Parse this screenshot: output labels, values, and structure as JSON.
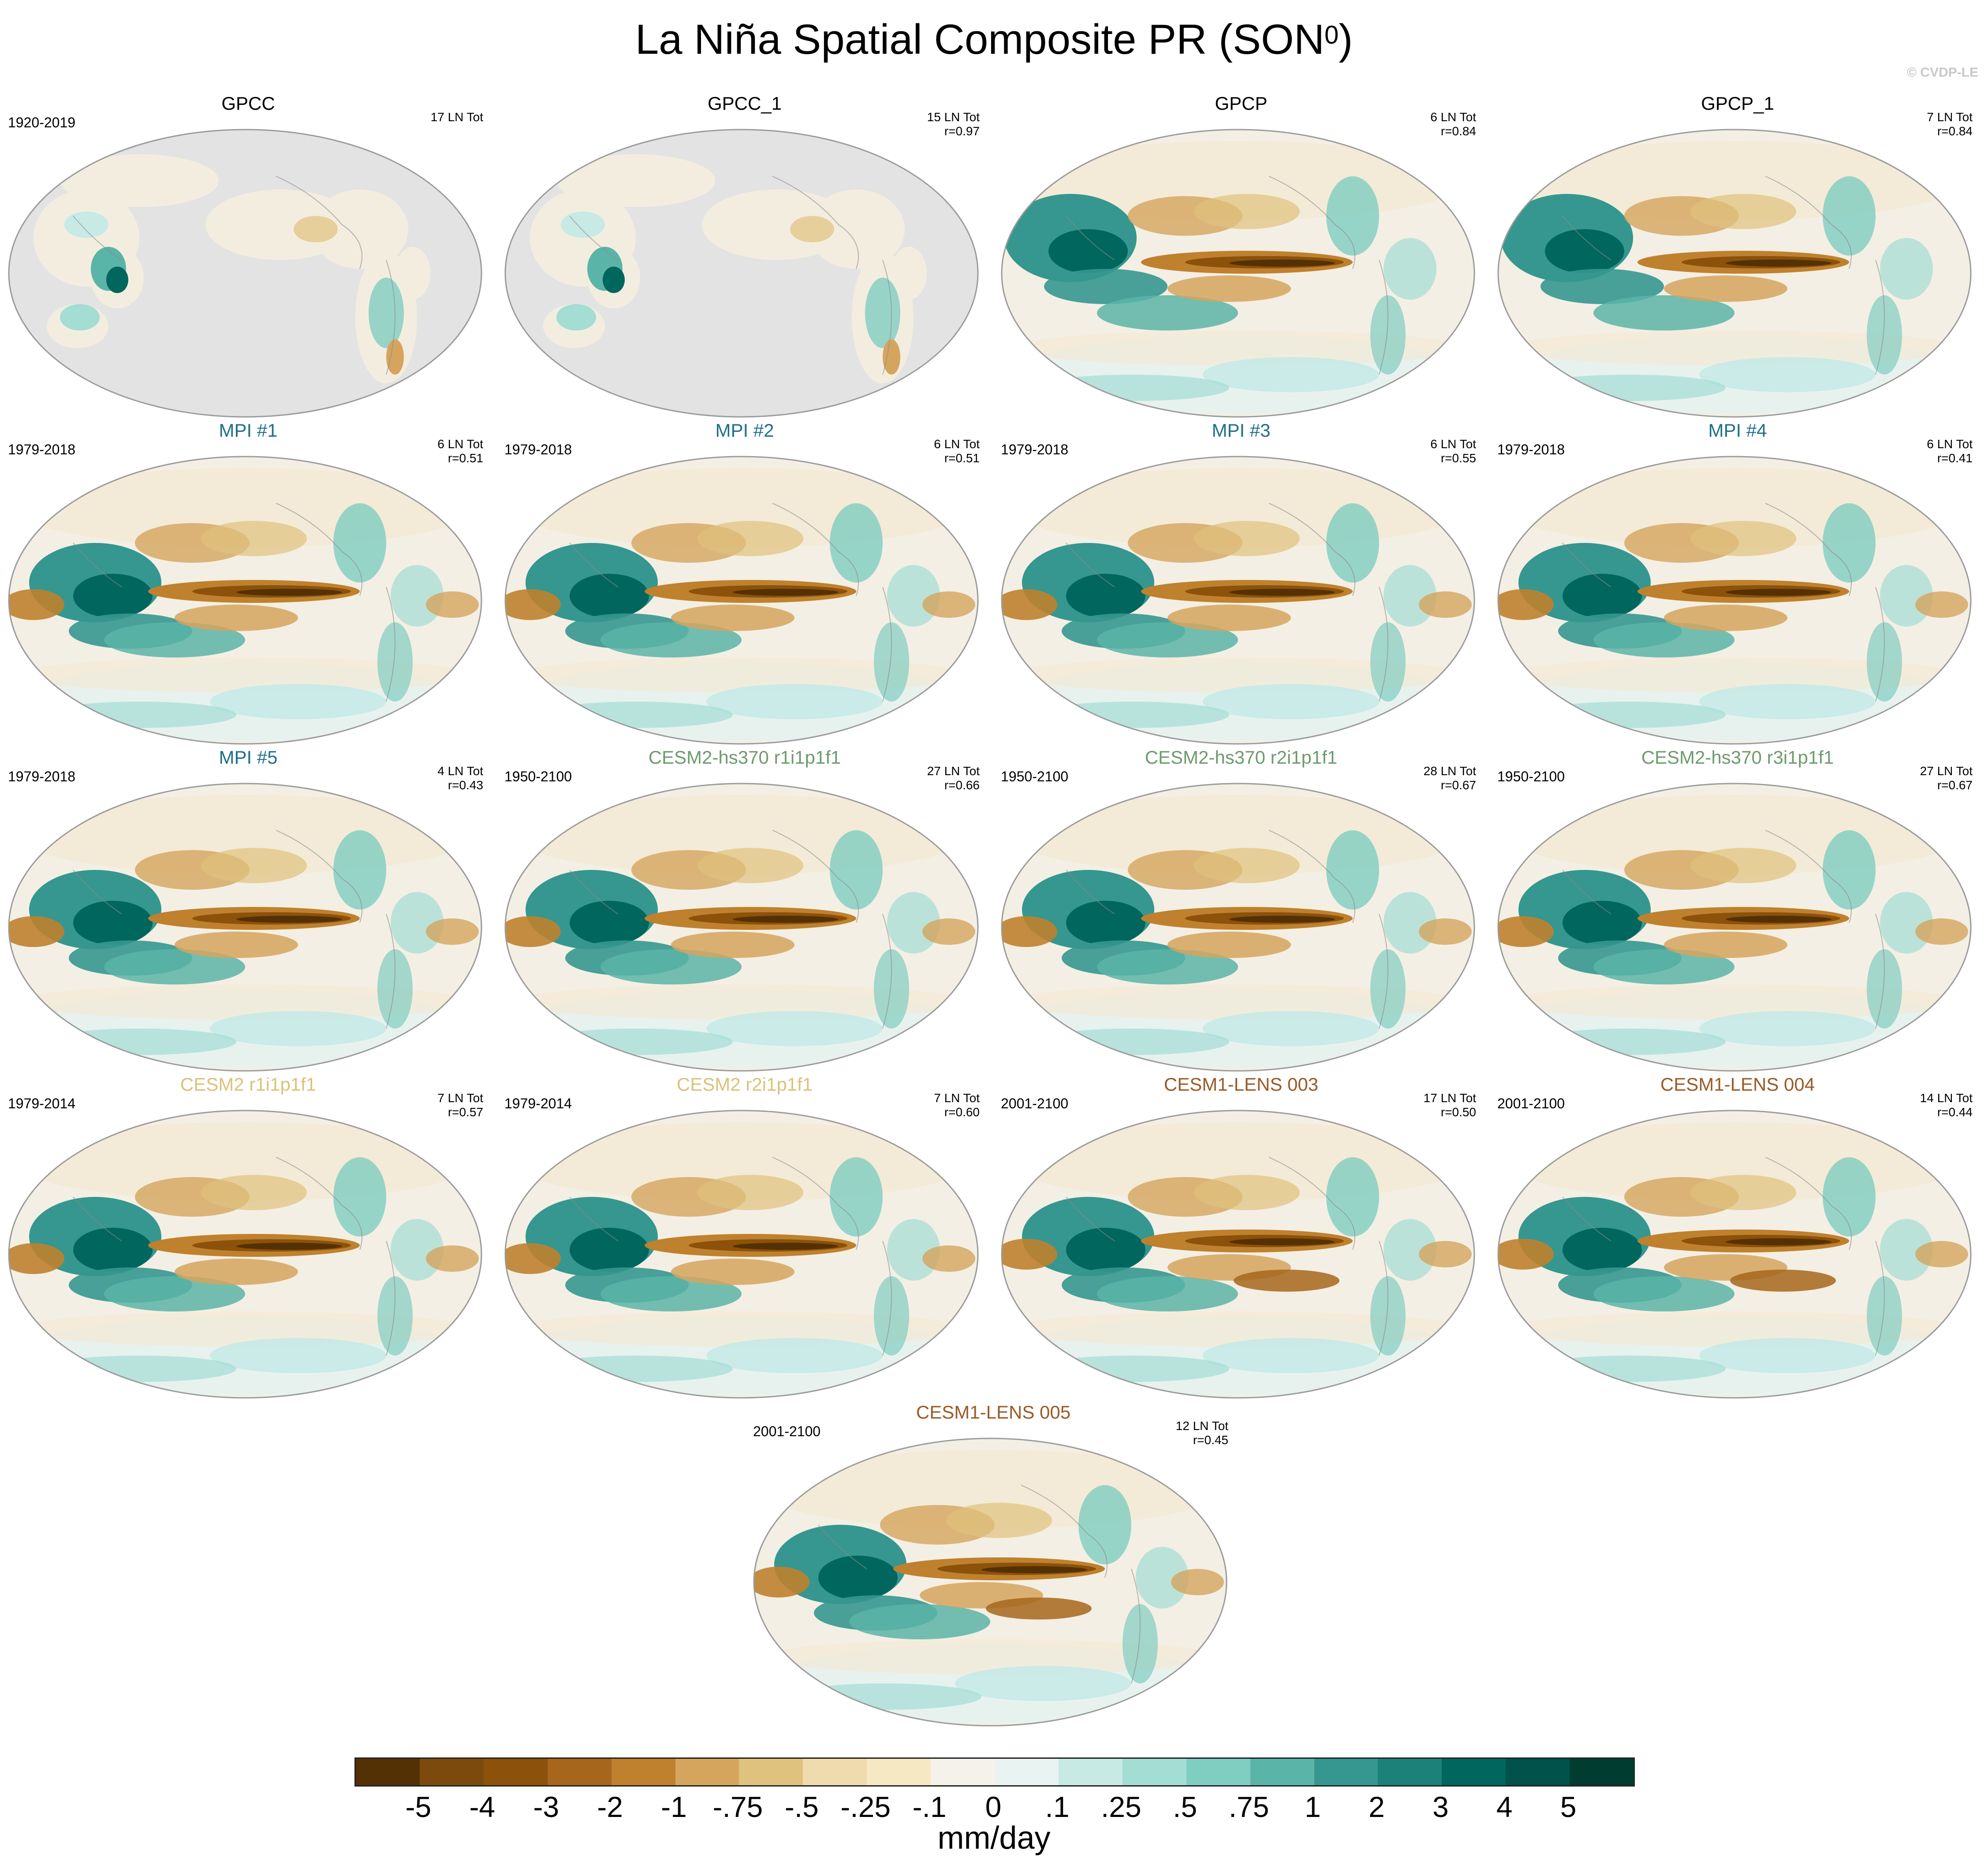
{
  "title": "La Niña Spatial Composite PR (SON",
  "title_sup": "0",
  "title_close": ")",
  "copyright": "© CVDP-LE",
  "colors": {
    "brown": [
      "#543005",
      "#7d4a0e",
      "#8c510a",
      "#a6661c",
      "#bf812d",
      "#d5a55e",
      "#dfc27d",
      "#efdbae",
      "#f6e8c3",
      "#f5f2eb"
    ],
    "teal": [
      "#e9f3f1",
      "#c7eae5",
      "#a3ddd4",
      "#80cdc1",
      "#5ab4a7",
      "#35978f",
      "#1c8178",
      "#01665e",
      "#00524a",
      "#003c30"
    ],
    "land_mask": "#e3e3e3",
    "coast": "#8a8a8a"
  },
  "panels": [
    {
      "name": "GPCC",
      "name_color": "#000000",
      "period": "1920-2019",
      "count": "17 LN Tot",
      "corr": "",
      "pattern": "obs_land"
    },
    {
      "name": "GPCC_1",
      "name_color": "#000000",
      "period": "",
      "count": "15 LN Tot",
      "corr": "r=0.97",
      "pattern": "obs_land"
    },
    {
      "name": "GPCP",
      "name_color": "#000000",
      "period": "",
      "count": "6 LN Tot",
      "corr": "r=0.84",
      "pattern": "obs"
    },
    {
      "name": "GPCP_1",
      "name_color": "#000000",
      "period": "",
      "count": "7 LN Tot",
      "corr": "r=0.84",
      "pattern": "obs"
    },
    {
      "name": "MPI #1",
      "name_color": "#1f6f8b",
      "period": "1979-2018",
      "count": "6 LN Tot",
      "corr": "r=0.51",
      "pattern": "mpi"
    },
    {
      "name": "MPI #2",
      "name_color": "#1f6f8b",
      "period": "1979-2018",
      "count": "6 LN Tot",
      "corr": "r=0.51",
      "pattern": "mpi"
    },
    {
      "name": "MPI #3",
      "name_color": "#1f6f8b",
      "period": "1979-2018",
      "count": "6 LN Tot",
      "corr": "r=0.55",
      "pattern": "mpi"
    },
    {
      "name": "MPI #4",
      "name_color": "#1f6f8b",
      "period": "1979-2018",
      "count": "6 LN Tot",
      "corr": "r=0.41",
      "pattern": "mpi"
    },
    {
      "name": "MPI #5",
      "name_color": "#1f6f8b",
      "period": "1979-2018",
      "count": "4 LN Tot",
      "corr": "r=0.43",
      "pattern": "mpi"
    },
    {
      "name": "CESM2-hs370 r1i1p1f1",
      "name_color": "#6f9a6f",
      "period": "1950-2100",
      "count": "27 LN Tot",
      "corr": "r=0.66",
      "pattern": "cesm"
    },
    {
      "name": "CESM2-hs370 r2i1p1f1",
      "name_color": "#6f9a6f",
      "period": "1950-2100",
      "count": "28 LN Tot",
      "corr": "r=0.67",
      "pattern": "cesm"
    },
    {
      "name": "CESM2-hs370 r3i1p1f1",
      "name_color": "#6f9a6f",
      "period": "1950-2100",
      "count": "27 LN Tot",
      "corr": "r=0.67",
      "pattern": "cesm"
    },
    {
      "name": "CESM2 r1i1p1f1",
      "name_color": "#d9c27a",
      "period": "1979-2014",
      "count": "7 LN Tot",
      "corr": "r=0.57",
      "pattern": "cesm"
    },
    {
      "name": "CESM2 r2i1p1f1",
      "name_color": "#d9c27a",
      "period": "1979-2014",
      "count": "7 LN Tot",
      "corr": "r=0.60",
      "pattern": "cesm"
    },
    {
      "name": "CESM1-LENS 003",
      "name_color": "#9a5a26",
      "period": "2001-2100",
      "count": "17 LN Tot",
      "corr": "r=0.50",
      "pattern": "lens"
    },
    {
      "name": "CESM1-LENS 004",
      "name_color": "#9a5a26",
      "period": "2001-2100",
      "count": "14 LN Tot",
      "corr": "r=0.44",
      "pattern": "lens"
    },
    {
      "name": "CESM1-LENS 005",
      "name_color": "#9a5a26",
      "period": "2001-2100",
      "count": "12 LN Tot",
      "corr": "r=0.45",
      "pattern": "lens"
    }
  ],
  "chart_data": {
    "type": "heatmap",
    "title": "La Niña Spatial Composite PR (SON0)",
    "variable": "PR",
    "units": "mm/day",
    "colorbar_labels": [
      "-5",
      "-4",
      "-3",
      "-2",
      "-1",
      "-.75",
      "-.5",
      "-.25",
      "-.1",
      "0",
      ".1",
      ".25",
      ".5",
      ".75",
      "1",
      "2",
      "3",
      "4",
      "5"
    ],
    "colorbar_levels": [
      -5,
      -4,
      -3,
      -2,
      -1,
      -0.75,
      -0.5,
      -0.25,
      -0.1,
      0,
      0.1,
      0.25,
      0.5,
      0.75,
      1,
      2,
      3,
      4,
      5
    ]
  },
  "units_label": "mm/day"
}
